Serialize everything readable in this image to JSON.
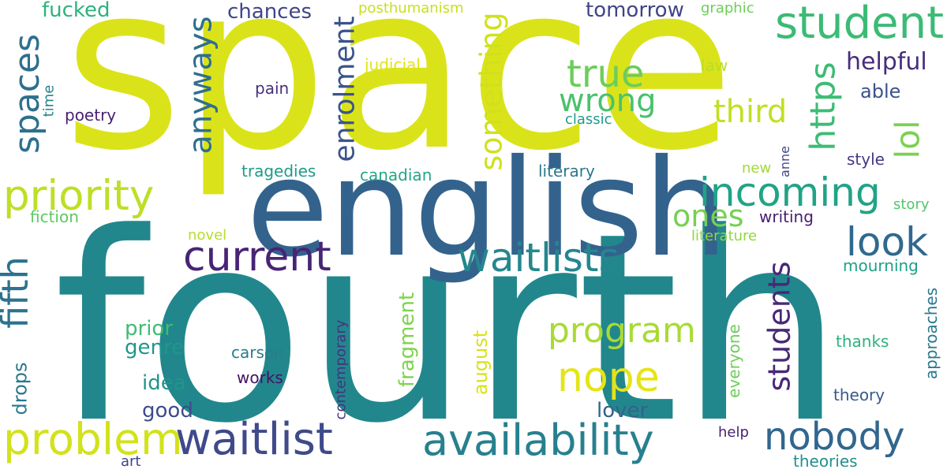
{
  "words": [
    {
      "text": "fourth",
      "color": "#21878d",
      "orientation": "horizontal"
    },
    {
      "text": "space",
      "color": "#dae319",
      "orientation": "horizontal"
    },
    {
      "text": "english",
      "color": "#33638d",
      "orientation": "horizontal"
    },
    {
      "text": "student",
      "color": "#3bbb75",
      "orientation": "horizontal"
    },
    {
      "text": "priority",
      "color": "#bddf26",
      "orientation": "horizontal"
    },
    {
      "text": "incoming",
      "color": "#20a386",
      "orientation": "horizontal"
    },
    {
      "text": "current",
      "color": "#482475",
      "orientation": "horizontal"
    },
    {
      "text": "waitlists",
      "color": "#24878e",
      "orientation": "horizontal"
    },
    {
      "text": "availability",
      "color": "#27808e",
      "orientation": "horizontal"
    },
    {
      "text": "waitlist",
      "color": "#3e4a89",
      "orientation": "horizontal"
    },
    {
      "text": "problem",
      "color": "#d2e21b",
      "orientation": "horizontal"
    },
    {
      "text": "nobody",
      "color": "#31668e",
      "orientation": "horizontal"
    },
    {
      "text": "true",
      "color": "#6ccd5a",
      "orientation": "horizontal"
    },
    {
      "text": "wrong",
      "color": "#4ac16d",
      "orientation": "horizontal"
    },
    {
      "text": "third",
      "color": "#c2df23",
      "orientation": "horizontal"
    },
    {
      "text": "look",
      "color": "#30698e",
      "orientation": "horizontal"
    },
    {
      "text": "program",
      "color": "#a8db34",
      "orientation": "horizontal"
    },
    {
      "text": "nope",
      "color": "#e5e419",
      "orientation": "horizontal"
    },
    {
      "text": "ones",
      "color": "#75d054",
      "orientation": "horizontal"
    },
    {
      "text": "spaces",
      "color": "#2d708e",
      "orientation": "vertical"
    },
    {
      "text": "fifth",
      "color": "#2c728e",
      "orientation": "vertical"
    },
    {
      "text": "anyways",
      "color": "#2e6f8e",
      "orientation": "vertical"
    },
    {
      "text": "enrolment",
      "color": "#3a548c",
      "orientation": "vertical"
    },
    {
      "text": "something",
      "color": "#d0e11c",
      "orientation": "vertical"
    },
    {
      "text": "https",
      "color": "#3dbc74",
      "orientation": "vertical"
    },
    {
      "text": "lol",
      "color": "#7ad151",
      "orientation": "vertical"
    },
    {
      "text": "students",
      "color": "#482878",
      "orientation": "vertical"
    },
    {
      "text": "helpful",
      "color": "#472d7b",
      "orientation": "horizontal"
    },
    {
      "text": "able",
      "color": "#3b528b",
      "orientation": "horizontal"
    },
    {
      "text": "tomorrow",
      "color": "#414487",
      "orientation": "horizontal"
    },
    {
      "text": "chances",
      "color": "#404688",
      "orientation": "horizontal"
    },
    {
      "text": "fucked",
      "color": "#2db27d",
      "orientation": "horizontal"
    },
    {
      "text": "posthumanism",
      "color": "#c8e020",
      "orientation": "horizontal"
    },
    {
      "text": "graphic",
      "color": "#6ece58",
      "orientation": "horizontal"
    },
    {
      "text": "judicial",
      "color": "#e2e418",
      "orientation": "horizontal"
    },
    {
      "text": "law",
      "color": "#b8de29",
      "orientation": "horizontal"
    },
    {
      "text": "pain",
      "color": "#46307e",
      "orientation": "horizontal"
    },
    {
      "text": "poetry",
      "color": "#481f70",
      "orientation": "horizontal"
    },
    {
      "text": "time",
      "color": "#26828e",
      "orientation": "vertical"
    },
    {
      "text": "classic",
      "color": "#1f9a8a",
      "orientation": "horizontal"
    },
    {
      "text": "tragedies",
      "color": "#1e9b8a",
      "orientation": "horizontal"
    },
    {
      "text": "canadian",
      "color": "#22a785",
      "orientation": "horizontal"
    },
    {
      "text": "literary",
      "color": "#2a788e",
      "orientation": "horizontal"
    },
    {
      "text": "new",
      "color": "#a0da39",
      "orientation": "horizontal"
    },
    {
      "text": "anne",
      "color": "#3e4989",
      "orientation": "vertical"
    },
    {
      "text": "style",
      "color": "#453882",
      "orientation": "horizontal"
    },
    {
      "text": "fiction",
      "color": "#5ec962",
      "orientation": "horizontal"
    },
    {
      "text": "writing",
      "color": "#481d6f",
      "orientation": "horizontal"
    },
    {
      "text": "story",
      "color": "#52c569",
      "orientation": "horizontal"
    },
    {
      "text": "novel",
      "color": "#b5de2b",
      "orientation": "horizontal"
    },
    {
      "text": "literature",
      "color": "#90d743",
      "orientation": "horizontal"
    },
    {
      "text": "mourning",
      "color": "#1fa188",
      "orientation": "horizontal"
    },
    {
      "text": "contemporary",
      "color": "#46327e",
      "orientation": "vertical"
    },
    {
      "text": "fragment",
      "color": "#7fd34e",
      "orientation": "vertical"
    },
    {
      "text": "august",
      "color": "#d8e219",
      "orientation": "vertical"
    },
    {
      "text": "everyone",
      "color": "#6ccd5a",
      "orientation": "vertical"
    },
    {
      "text": "approaches",
      "color": "#2a788e",
      "orientation": "vertical"
    },
    {
      "text": "prior",
      "color": "#3fbc73",
      "orientation": "horizontal"
    },
    {
      "text": "genre",
      "color": "#1f968b",
      "orientation": "horizontal"
    },
    {
      "text": "idea",
      "color": "#1f958b",
      "orientation": "horizontal"
    },
    {
      "text": "good",
      "color": "#3e4c8a",
      "orientation": "horizontal"
    },
    {
      "text": "carson",
      "color": "#287d8e",
      "orientation": "horizontal"
    },
    {
      "text": "works",
      "color": "#471063",
      "orientation": "horizontal"
    },
    {
      "text": "thanks",
      "color": "#2db27d",
      "orientation": "horizontal"
    },
    {
      "text": "theory",
      "color": "#38598c",
      "orientation": "horizontal"
    },
    {
      "text": "lover",
      "color": "#33628d",
      "orientation": "horizontal"
    },
    {
      "text": "drops",
      "color": "#2a768e",
      "orientation": "vertical"
    },
    {
      "text": "art",
      "color": "#404588",
      "orientation": "horizontal"
    },
    {
      "text": "help",
      "color": "#482173",
      "orientation": "horizontal"
    },
    {
      "text": "theories",
      "color": "#21918c",
      "orientation": "horizontal"
    }
  ]
}
